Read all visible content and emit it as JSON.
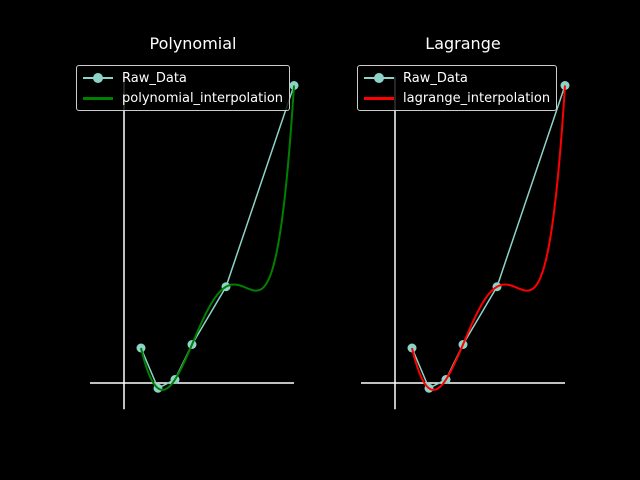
{
  "chart_data": [
    {
      "type": "line",
      "title": "Polynomial",
      "xlabel": "",
      "ylabel": "",
      "xlim": [
        -2,
        10
      ],
      "ylim": [
        -1.5,
        17.5
      ],
      "grid": false,
      "legend_position": "upper-center",
      "series": [
        {
          "name": "Raw_Data",
          "kind": "line-markers",
          "color": "#8dd3c7",
          "x": [
            1,
            2,
            3,
            4,
            6,
            10
          ],
          "y": [
            2,
            -0.3,
            0.2,
            2.2,
            5.5,
            17
          ]
        },
        {
          "name": "polynomial_interpolation",
          "kind": "smooth-line",
          "color": "#008000",
          "x": [
            1,
            2,
            3,
            4,
            6,
            10
          ],
          "y": [
            2,
            -0.3,
            0.2,
            2.2,
            5.5,
            17
          ]
        }
      ]
    },
    {
      "type": "line",
      "title": "Lagrange",
      "xlabel": "",
      "ylabel": "",
      "xlim": [
        -2,
        10
      ],
      "ylim": [
        -1.5,
        17.5
      ],
      "grid": false,
      "legend_position": "upper-center",
      "series": [
        {
          "name": "Raw_Data",
          "kind": "line-markers",
          "color": "#8dd3c7",
          "x": [
            1,
            2,
            3,
            4,
            6,
            10
          ],
          "y": [
            2,
            -0.3,
            0.2,
            2.2,
            5.5,
            17
          ]
        },
        {
          "name": "lagrange_interpolation",
          "kind": "smooth-line",
          "color": "#ff0000",
          "x": [
            1,
            2,
            3,
            4,
            6,
            10
          ],
          "y": [
            2,
            -0.3,
            0.2,
            2.2,
            5.5,
            17
          ]
        }
      ]
    }
  ]
}
